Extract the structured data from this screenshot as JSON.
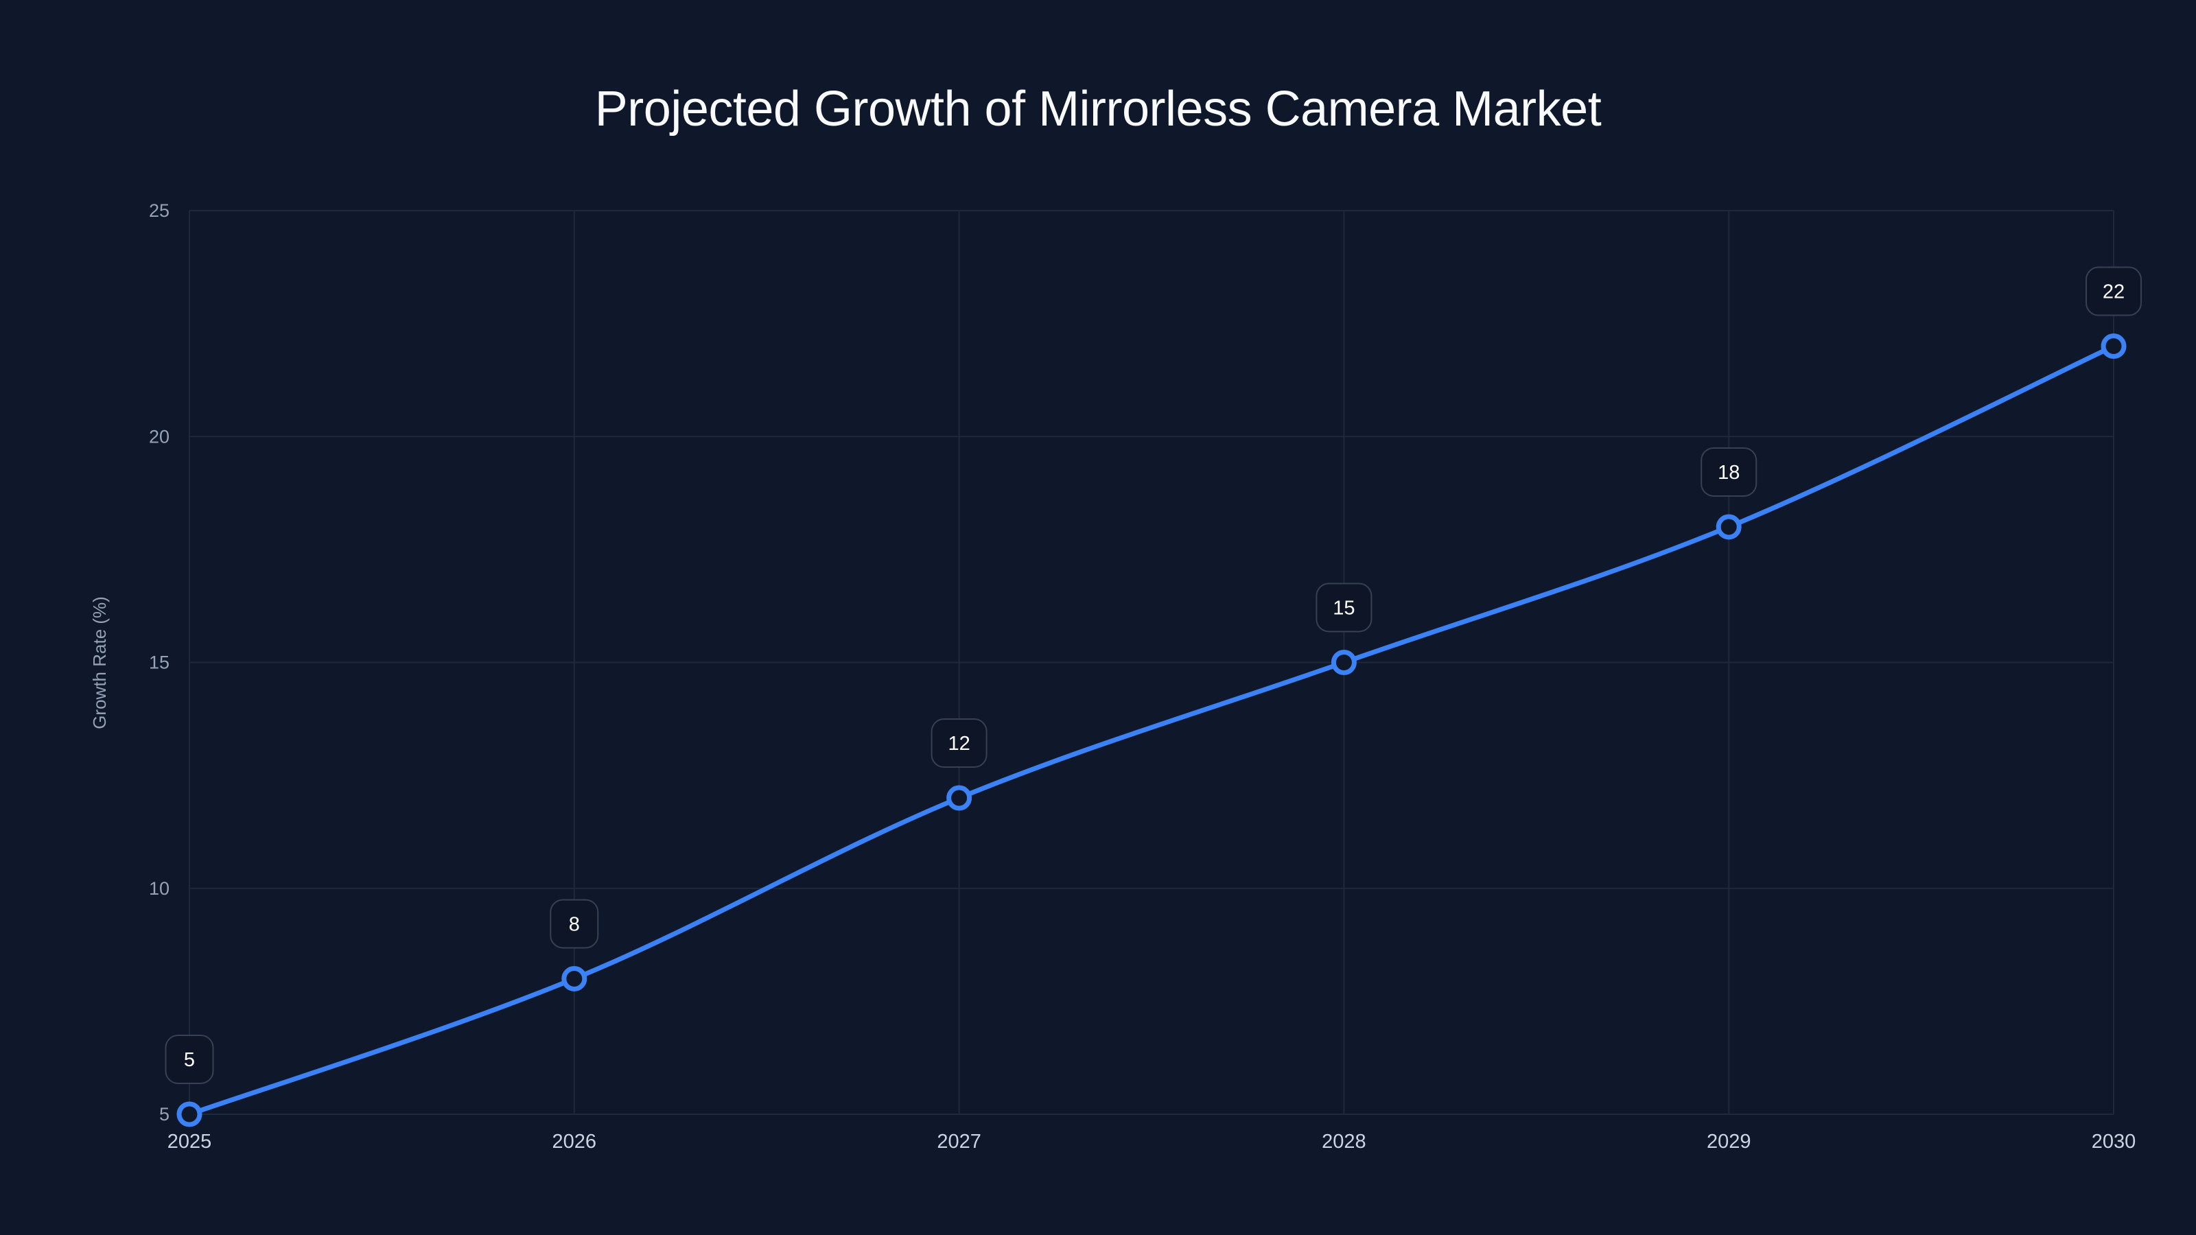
{
  "title": "Projected Growth of Mirrorless Camera Market",
  "colors": {
    "background": "#0f172a",
    "line": "#3b82f6",
    "grid": "#1e293b",
    "label_box_fill": "#0e1526",
    "label_box_border": "#374151",
    "tick_text": "#94a3b8",
    "x_tick_text": "#cbd5e1",
    "title_text": "#f8fafc"
  },
  "chart_data": {
    "type": "line",
    "title": "Projected Growth of Mirrorless Camera Market",
    "xlabel": "",
    "ylabel": "Growth Rate (%)",
    "categories": [
      "2025",
      "2026",
      "2027",
      "2028",
      "2029",
      "2030"
    ],
    "series": [
      {
        "name": "Growth Rate (%)",
        "values": [
          5,
          8,
          12,
          15,
          18,
          22
        ]
      }
    ],
    "data_labels": [
      "5",
      "8",
      "12",
      "15",
      "18",
      "22"
    ],
    "y_ticks": [
      "5",
      "10",
      "15",
      "20",
      "25"
    ],
    "ylim": [
      5,
      25
    ],
    "grid": true,
    "legend": "none",
    "smooth": true,
    "markers": "hollow-circle"
  }
}
